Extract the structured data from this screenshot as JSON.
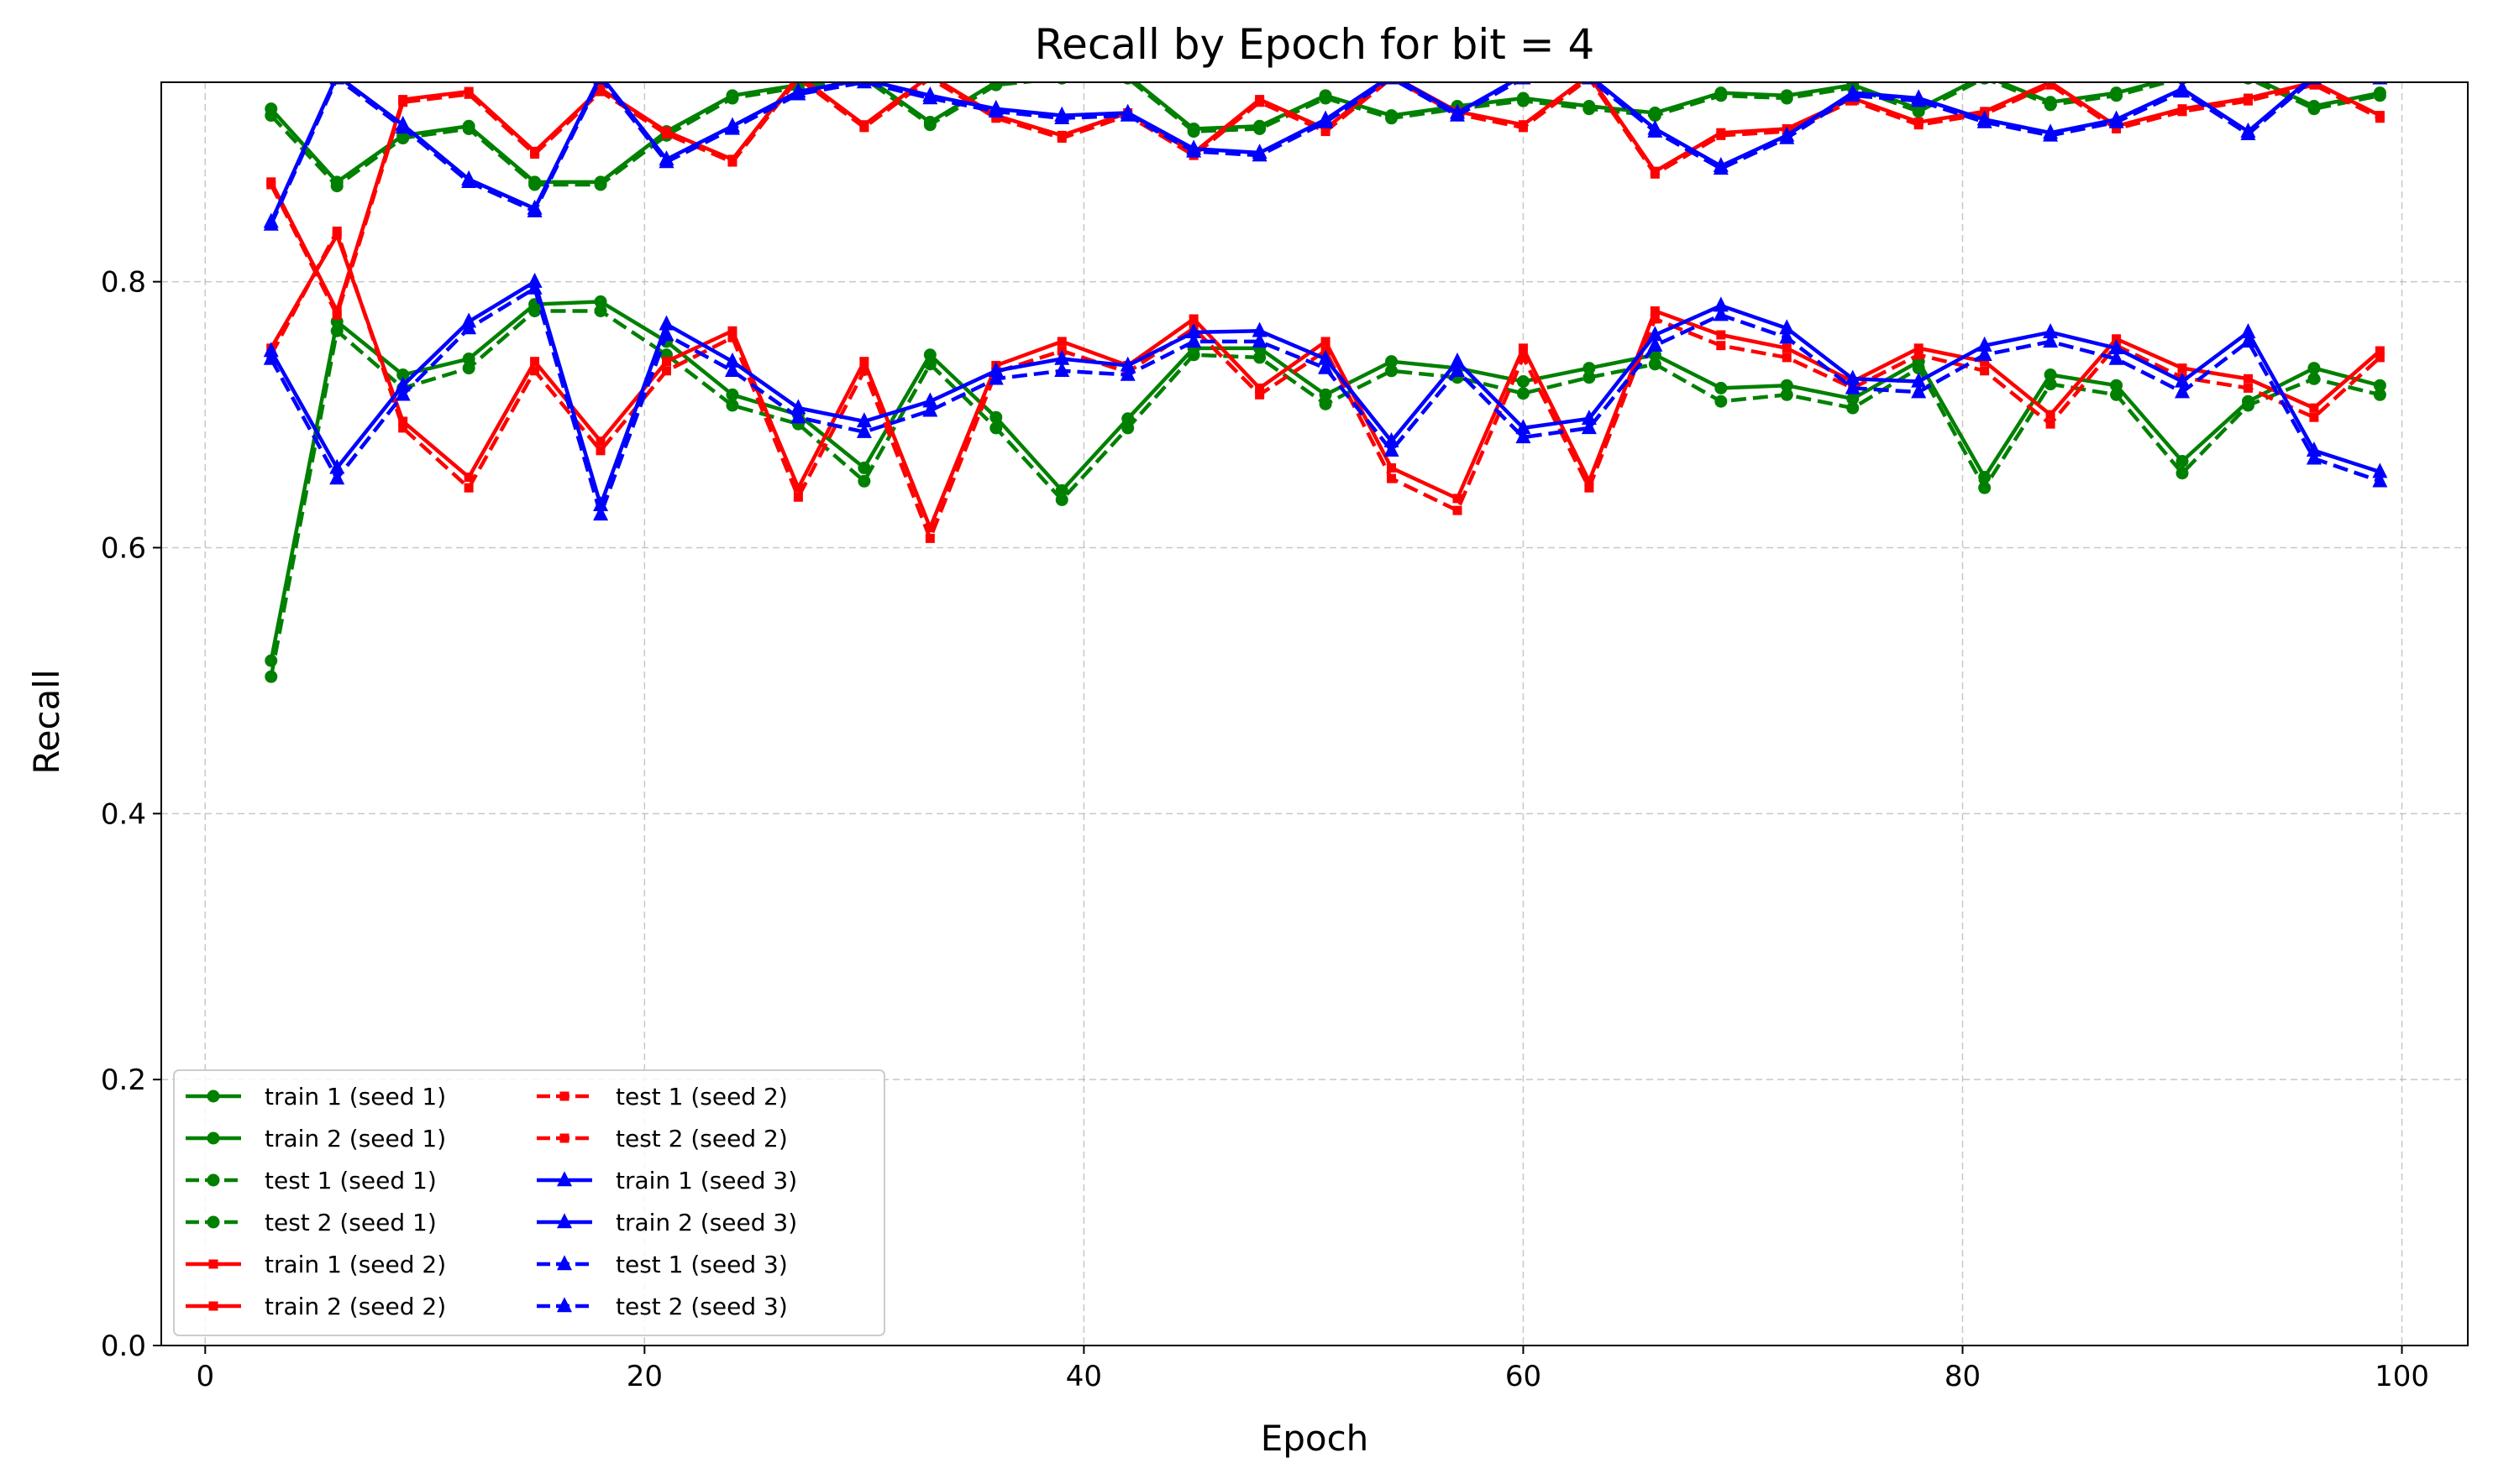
{
  "chart_data": {
    "type": "line",
    "title": "Recall by Epoch for bit = 4",
    "xlabel": "Epoch",
    "ylabel": "Recall",
    "xlim": [
      -2,
      103
    ],
    "ylim": [
      0.0,
      0.95
    ],
    "xticks": [
      0,
      20,
      40,
      60,
      80,
      100
    ],
    "yticks": [
      0.0,
      0.2,
      0.4,
      0.6,
      0.8
    ],
    "xtick_labels": [
      "0",
      "20",
      "40",
      "60",
      "80",
      "100"
    ],
    "ytick_labels": [
      "0.0",
      "0.2",
      "0.4",
      "0.6",
      "0.8"
    ],
    "grid": true,
    "legend_position": "lower-left",
    "legend_columns": 2,
    "x": [
      3,
      6,
      9,
      12,
      15,
      18,
      21,
      24,
      27,
      30,
      33,
      36,
      39,
      42,
      45,
      48,
      51,
      54,
      57,
      60,
      63,
      66,
      69,
      72,
      75,
      78,
      81,
      84,
      87,
      90,
      93,
      96,
      99
    ],
    "series": [
      {
        "name": "train 1 (seed 1)",
        "color": "#008000",
        "dash": "solid",
        "marker": "circle",
        "values": [
          0.93,
          0.875,
          0.91,
          0.917,
          0.875,
          0.875,
          0.913,
          0.94,
          0.948,
          0.955,
          0.92,
          0.95,
          0.955,
          0.955,
          0.915,
          0.917,
          0.94,
          0.925,
          0.932,
          0.938,
          0.932,
          0.927,
          0.942,
          0.94,
          0.948,
          0.93,
          0.955,
          0.935,
          0.942,
          0.955,
          0.955,
          0.932,
          0.942
        ]
      },
      {
        "name": "train 2 (seed 1)",
        "color": "#008000",
        "dash": "solid",
        "marker": "circle",
        "values": [
          0.515,
          0.77,
          0.73,
          0.742,
          0.783,
          0.785,
          0.755,
          0.715,
          0.7,
          0.66,
          0.745,
          0.698,
          0.643,
          0.697,
          0.75,
          0.75,
          0.715,
          0.74,
          0.735,
          0.725,
          0.735,
          0.745,
          0.72,
          0.722,
          0.712,
          0.74,
          0.653,
          0.73,
          0.722,
          0.665,
          0.71,
          0.735,
          0.722
        ]
      },
      {
        "name": "test 1 (seed 1)",
        "color": "#008000",
        "dash": "dashed",
        "marker": "circle",
        "values": [
          0.925,
          0.872,
          0.908,
          0.915,
          0.873,
          0.873,
          0.91,
          0.938,
          0.946,
          0.953,
          0.918,
          0.948,
          0.953,
          0.953,
          0.913,
          0.915,
          0.938,
          0.923,
          0.93,
          0.936,
          0.93,
          0.925,
          0.94,
          0.938,
          0.946,
          0.928,
          0.953,
          0.933,
          0.94,
          0.953,
          0.953,
          0.93,
          0.94
        ]
      },
      {
        "name": "test 2 (seed 1)",
        "color": "#008000",
        "dash": "dashed",
        "marker": "circle",
        "values": [
          0.503,
          0.763,
          0.72,
          0.735,
          0.778,
          0.778,
          0.745,
          0.707,
          0.693,
          0.65,
          0.738,
          0.69,
          0.636,
          0.69,
          0.745,
          0.743,
          0.708,
          0.733,
          0.728,
          0.716,
          0.728,
          0.738,
          0.71,
          0.715,
          0.705,
          0.735,
          0.645,
          0.723,
          0.715,
          0.656,
          0.707,
          0.727,
          0.715
        ]
      },
      {
        "name": "train 1 (seed 2)",
        "color": "#ff0000",
        "dash": "solid",
        "marker": "square",
        "values": [
          0.875,
          0.778,
          0.937,
          0.943,
          0.898,
          0.945,
          0.913,
          0.892,
          0.955,
          0.918,
          0.955,
          0.925,
          0.91,
          0.927,
          0.897,
          0.937,
          0.915,
          0.955,
          0.928,
          0.918,
          0.955,
          0.883,
          0.912,
          0.915,
          0.938,
          0.92,
          0.928,
          0.95,
          0.917,
          0.93,
          0.938,
          0.95,
          0.925
        ]
      },
      {
        "name": "train 2 (seed 2)",
        "color": "#ff0000",
        "dash": "solid",
        "marker": "square",
        "values": [
          0.75,
          0.835,
          0.695,
          0.653,
          0.74,
          0.68,
          0.74,
          0.763,
          0.645,
          0.74,
          0.615,
          0.737,
          0.755,
          0.737,
          0.772,
          0.72,
          0.755,
          0.66,
          0.637,
          0.75,
          0.65,
          0.778,
          0.76,
          0.75,
          0.725,
          0.75,
          0.74,
          0.7,
          0.757,
          0.735,
          0.727,
          0.705,
          0.748
        ]
      },
      {
        "name": "test 1 (seed 2)",
        "color": "#ff0000",
        "dash": "dashed",
        "marker": "square",
        "values": [
          0.873,
          0.775,
          0.935,
          0.941,
          0.896,
          0.943,
          0.911,
          0.89,
          0.953,
          0.916,
          0.953,
          0.923,
          0.908,
          0.925,
          0.895,
          0.935,
          0.913,
          0.953,
          0.926,
          0.916,
          0.953,
          0.881,
          0.91,
          0.913,
          0.936,
          0.918,
          0.926,
          0.948,
          0.915,
          0.928,
          0.936,
          0.948,
          0.923
        ]
      },
      {
        "name": "test 2 (seed 2)",
        "color": "#ff0000",
        "dash": "dashed",
        "marker": "square",
        "values": [
          0.745,
          0.838,
          0.69,
          0.645,
          0.733,
          0.673,
          0.733,
          0.758,
          0.638,
          0.733,
          0.607,
          0.732,
          0.748,
          0.732,
          0.765,
          0.715,
          0.748,
          0.652,
          0.628,
          0.743,
          0.645,
          0.772,
          0.752,
          0.743,
          0.72,
          0.745,
          0.733,
          0.693,
          0.752,
          0.728,
          0.72,
          0.698,
          0.743
        ]
      },
      {
        "name": "train 1 (seed 3)",
        "color": "#0000ff",
        "dash": "solid",
        "marker": "triangle",
        "values": [
          0.845,
          0.955,
          0.918,
          0.877,
          0.855,
          0.955,
          0.892,
          0.917,
          0.943,
          0.952,
          0.94,
          0.93,
          0.925,
          0.927,
          0.9,
          0.897,
          0.922,
          0.955,
          0.927,
          0.955,
          0.955,
          0.915,
          0.887,
          0.91,
          0.942,
          0.938,
          0.922,
          0.912,
          0.922,
          0.945,
          0.913,
          0.955,
          0.955
        ]
      },
      {
        "name": "train 2 (seed 3)",
        "color": "#0000ff",
        "dash": "solid",
        "marker": "triangle",
        "values": [
          0.748,
          0.66,
          0.722,
          0.77,
          0.8,
          0.632,
          0.768,
          0.74,
          0.705,
          0.695,
          0.71,
          0.733,
          0.742,
          0.737,
          0.762,
          0.763,
          0.742,
          0.68,
          0.74,
          0.69,
          0.697,
          0.76,
          0.782,
          0.765,
          0.727,
          0.725,
          0.752,
          0.762,
          0.75,
          0.725,
          0.762,
          0.673,
          0.657
        ]
      },
      {
        "name": "test 1 (seed 3)",
        "color": "#0000ff",
        "dash": "dashed",
        "marker": "triangle",
        "values": [
          0.843,
          0.953,
          0.916,
          0.875,
          0.853,
          0.953,
          0.89,
          0.915,
          0.941,
          0.95,
          0.938,
          0.928,
          0.923,
          0.925,
          0.898,
          0.895,
          0.92,
          0.953,
          0.925,
          0.953,
          0.953,
          0.913,
          0.885,
          0.908,
          0.94,
          0.936,
          0.92,
          0.91,
          0.92,
          0.943,
          0.911,
          0.953,
          0.953
        ]
      },
      {
        "name": "test 2 (seed 3)",
        "color": "#0000ff",
        "dash": "dashed",
        "marker": "triangle",
        "values": [
          0.742,
          0.652,
          0.715,
          0.765,
          0.795,
          0.625,
          0.76,
          0.733,
          0.698,
          0.687,
          0.703,
          0.727,
          0.733,
          0.73,
          0.755,
          0.755,
          0.735,
          0.673,
          0.733,
          0.683,
          0.69,
          0.752,
          0.775,
          0.758,
          0.72,
          0.717,
          0.745,
          0.755,
          0.742,
          0.717,
          0.755,
          0.667,
          0.65
        ]
      }
    ]
  }
}
